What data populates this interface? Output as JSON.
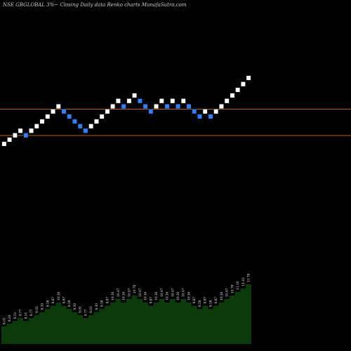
{
  "chart_data": {
    "type": "renko",
    "title": "NSE GBGLOBAL 3%~ Closing Daily data Renko charts MunafaSutra.com",
    "bricks": [
      {
        "value": 8.02,
        "color": "white"
      },
      {
        "value": 8.26,
        "color": "white"
      },
      {
        "value": 8.51,
        "color": "white"
      },
      {
        "value": 8.77,
        "color": "white"
      },
      {
        "value": 8.51,
        "color": "blue"
      },
      {
        "value": 8.77,
        "color": "white"
      },
      {
        "value": 9.03,
        "color": "white"
      },
      {
        "value": 9.3,
        "color": "white"
      },
      {
        "value": 9.58,
        "color": "white"
      },
      {
        "value": 9.87,
        "color": "white"
      },
      {
        "value": 10.16,
        "color": "white"
      },
      {
        "value": 9.87,
        "color": "blue"
      },
      {
        "value": 9.58,
        "color": "blue"
      },
      {
        "value": 9.3,
        "color": "blue"
      },
      {
        "value": 9.03,
        "color": "blue"
      },
      {
        "value": 8.77,
        "color": "blue"
      },
      {
        "value": 9.03,
        "color": "white"
      },
      {
        "value": 9.3,
        "color": "white"
      },
      {
        "value": 9.58,
        "color": "white"
      },
      {
        "value": 9.87,
        "color": "white"
      },
      {
        "value": 10.16,
        "color": "white"
      },
      {
        "value": 10.47,
        "color": "white"
      },
      {
        "value": 10.16,
        "color": "blue"
      },
      {
        "value": 10.47,
        "color": "white"
      },
      {
        "value": 10.78,
        "color": "white"
      },
      {
        "value": 10.47,
        "color": "blue"
      },
      {
        "value": 10.16,
        "color": "blue"
      },
      {
        "value": 9.87,
        "color": "blue"
      },
      {
        "value": 10.16,
        "color": "white"
      },
      {
        "value": 10.47,
        "color": "white"
      },
      {
        "value": 10.16,
        "color": "blue"
      },
      {
        "value": 10.47,
        "color": "white"
      },
      {
        "value": 10.16,
        "color": "blue"
      },
      {
        "value": 10.47,
        "color": "white"
      },
      {
        "value": 10.16,
        "color": "blue"
      },
      {
        "value": 9.87,
        "color": "blue"
      },
      {
        "value": 9.58,
        "color": "blue"
      },
      {
        "value": 9.87,
        "color": "white"
      },
      {
        "value": 9.58,
        "color": "blue"
      },
      {
        "value": 9.87,
        "color": "white"
      },
      {
        "value": 10.16,
        "color": "white"
      },
      {
        "value": 10.47,
        "color": "white"
      },
      {
        "value": 10.78,
        "color": "white"
      },
      {
        "value": 11.1,
        "color": "white"
      },
      {
        "value": 11.43,
        "color": "white"
      },
      {
        "value": 11.78,
        "color": "white"
      }
    ],
    "hlines": [
      10.0,
      8.5
    ],
    "volume_labels": [
      "8.02",
      "8.26",
      "8.51",
      "8.77",
      "8.51",
      "8.77",
      "9.03",
      "9.30",
      "9.58",
      "9.87",
      "10.16",
      "9.87",
      "9.58",
      "9.30",
      "9.03",
      "8.77",
      "9.03",
      "9.30",
      "9.58",
      "9.87",
      "10.16",
      "10.47",
      "10.16",
      "10.47",
      "10.78",
      "10.47",
      "10.16",
      "9.87",
      "10.16",
      "10.47",
      "10.16",
      "10.47",
      "10.16",
      "10.47",
      "10.16",
      "9.87",
      "9.58",
      "9.87",
      "9.58",
      "9.87",
      "10.16",
      "10.47",
      "10.78",
      "11.10",
      "11.43",
      "11.78"
    ],
    "colors": {
      "background": "#000000",
      "up": "#ffffff",
      "down": "#2f7fff",
      "hline": "#b5651d",
      "area": "#0b3a0b"
    }
  }
}
